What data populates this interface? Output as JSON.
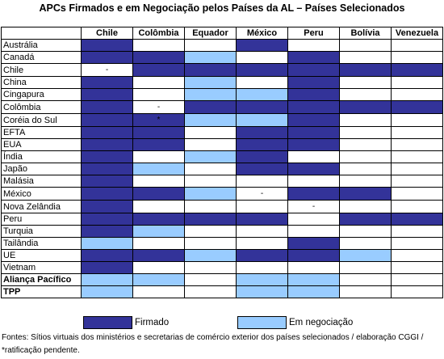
{
  "title": "APCs Firmados e em Negociação pelos Países da AL – Países Selecionados",
  "columns": [
    "Chile",
    "Colômbia",
    "Equador",
    "México",
    "Peru",
    "Bolívia",
    "Venezuela"
  ],
  "colors": {
    "firmado": "#333399",
    "negociacao": "#99ccff",
    "none": "#ffffff"
  },
  "rows": [
    {
      "label": "Austrália",
      "bold": false,
      "cells": [
        "F",
        "",
        "",
        "F",
        "",
        "",
        ""
      ],
      "marks": [
        "",
        "",
        "",
        "",
        "",
        "",
        ""
      ]
    },
    {
      "label": "Canadá",
      "bold": false,
      "cells": [
        "F",
        "F",
        "N",
        "",
        "F",
        "",
        ""
      ],
      "marks": [
        "",
        "",
        "",
        "",
        "",
        "",
        ""
      ]
    },
    {
      "label": "Chile",
      "bold": false,
      "cells": [
        "",
        "F",
        "F",
        "F",
        "F",
        "F",
        "F"
      ],
      "marks": [
        "-",
        "",
        "",
        "",
        "",
        "",
        ""
      ]
    },
    {
      "label": "China",
      "bold": false,
      "cells": [
        "F",
        "",
        "N",
        "",
        "F",
        "",
        ""
      ],
      "marks": [
        "",
        "",
        "",
        "",
        "",
        "",
        ""
      ]
    },
    {
      "label": "Cingapura",
      "bold": false,
      "cells": [
        "F",
        "",
        "N",
        "N",
        "F",
        "",
        ""
      ],
      "marks": [
        "",
        "",
        "",
        "",
        "",
        "",
        ""
      ]
    },
    {
      "label": "Colômbia",
      "bold": false,
      "cells": [
        "F",
        "",
        "F",
        "F",
        "F",
        "F",
        "F"
      ],
      "marks": [
        "",
        "-",
        "",
        "",
        "",
        "",
        ""
      ]
    },
    {
      "label": "Coréia do Sul",
      "bold": false,
      "cells": [
        "F",
        "F",
        "N",
        "N",
        "F",
        "",
        ""
      ],
      "marks": [
        "",
        "*",
        "",
        "",
        "",
        "",
        ""
      ]
    },
    {
      "label": "EFTA",
      "bold": false,
      "cells": [
        "F",
        "F",
        "",
        "F",
        "F",
        "",
        ""
      ],
      "marks": [
        "",
        "",
        "",
        "",
        "",
        "",
        ""
      ]
    },
    {
      "label": "EUA",
      "bold": false,
      "cells": [
        "F",
        "F",
        "",
        "F",
        "F",
        "",
        ""
      ],
      "marks": [
        "",
        "",
        "",
        "",
        "",
        "",
        ""
      ]
    },
    {
      "label": "Índia",
      "bold": false,
      "cells": [
        "F",
        "",
        "N",
        "F",
        "",
        "",
        ""
      ],
      "marks": [
        "",
        "",
        "",
        "",
        "",
        "",
        ""
      ]
    },
    {
      "label": "Japão",
      "bold": false,
      "cells": [
        "F",
        "N",
        "",
        "F",
        "F",
        "",
        ""
      ],
      "marks": [
        "",
        "",
        "",
        "",
        "",
        "",
        ""
      ]
    },
    {
      "label": "Malásia",
      "bold": false,
      "cells": [
        "F",
        "",
        "",
        "",
        "",
        "",
        ""
      ],
      "marks": [
        "",
        "",
        "",
        "",
        "",
        "",
        ""
      ]
    },
    {
      "label": "México",
      "bold": false,
      "cells": [
        "F",
        "F",
        "N",
        "",
        "F",
        "F",
        ""
      ],
      "marks": [
        "",
        "",
        "",
        "-",
        "",
        "",
        ""
      ]
    },
    {
      "label": "Nova Zelândia",
      "bold": false,
      "cells": [
        "F",
        "",
        "",
        "",
        "",
        "",
        ""
      ],
      "marks": [
        "",
        "",
        "",
        "",
        "-",
        "",
        ""
      ]
    },
    {
      "label": "Peru",
      "bold": false,
      "cells": [
        "F",
        "F",
        "F",
        "F",
        "",
        "F",
        "F"
      ],
      "marks": [
        "",
        "",
        "",
        "",
        "",
        "",
        ""
      ]
    },
    {
      "label": "Turquia",
      "bold": false,
      "cells": [
        "F",
        "N",
        "",
        "",
        "",
        "",
        ""
      ],
      "marks": [
        "",
        "",
        "",
        "",
        "",
        "",
        ""
      ]
    },
    {
      "label": "Tailândia",
      "bold": false,
      "cells": [
        "N",
        "",
        "",
        "",
        "F",
        "",
        ""
      ],
      "marks": [
        "",
        "",
        "",
        "",
        "",
        "",
        ""
      ]
    },
    {
      "label": "UE",
      "bold": false,
      "cells": [
        "F",
        "F",
        "N",
        "F",
        "F",
        "N",
        ""
      ],
      "marks": [
        "",
        "",
        "",
        "",
        "",
        "",
        ""
      ]
    },
    {
      "label": "Vietnam",
      "bold": false,
      "cells": [
        "F",
        "",
        "",
        "",
        "",
        "",
        ""
      ],
      "marks": [
        "",
        "",
        "",
        "",
        "",
        "",
        ""
      ]
    },
    {
      "label": "Aliança Pacífico",
      "bold": true,
      "cells": [
        "N",
        "N",
        "",
        "N",
        "N",
        "",
        ""
      ],
      "marks": [
        "",
        "",
        "",
        "",
        "",
        "",
        ""
      ]
    },
    {
      "label": "TPP",
      "bold": true,
      "cells": [
        "N",
        "",
        "",
        "N",
        "N",
        "",
        ""
      ],
      "marks": [
        "",
        "",
        "",
        "",
        "",
        "",
        ""
      ]
    }
  ],
  "legend": {
    "firmado": "Firmado",
    "negociacao": "Em negociação"
  },
  "note": "Fontes: Sítios virtuais dos ministérios e secretarias de comércio exterior dos países selecionados / elaboração CGGI / *ratificação pendente."
}
